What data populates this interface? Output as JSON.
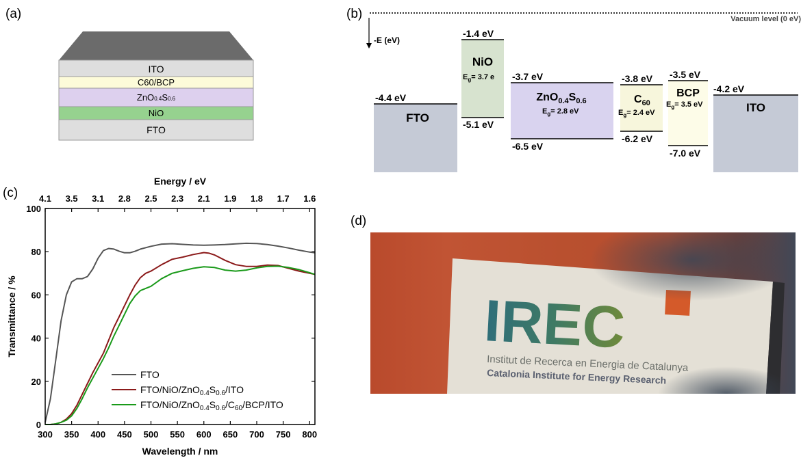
{
  "panel_labels": {
    "a": "(a)",
    "b": "(b)",
    "c": "(c)",
    "d": "(d)"
  },
  "stack": {
    "layers": [
      "ITO",
      "C60/BCP",
      "ZnO",
      "NiO",
      "FTO"
    ],
    "zno_sub_o": "0.4",
    "zno_s": "S",
    "zno_sub_s": "0.6"
  },
  "band_diagram": {
    "vacuum_label": "Vacuum level (0 eV)",
    "axis_label": "-E (eV)",
    "layers": [
      {
        "name": "FTO",
        "level": "-4.4 eV"
      },
      {
        "name": "NiO",
        "top": "-1.4 eV",
        "bottom": "-5.1 eV",
        "eg": "= 3.7 e"
      },
      {
        "name": "ZnO0.4S0.6",
        "top": "-3.7 eV",
        "bottom": "-6.5 eV",
        "eg": "= 2.8 eV"
      },
      {
        "name": "C60",
        "top": "-3.8 eV",
        "bottom": "-6.2 eV",
        "eg": "= 2.4 eV"
      },
      {
        "name": "BCP",
        "top": "-3.5 eV",
        "bottom": "-7.0 eV",
        "eg": "= 3.5 eV"
      },
      {
        "name": "ITO",
        "level": "-4.2 eV"
      }
    ],
    "eg_symbol": "E",
    "eg_sub": "g"
  },
  "chart_data": {
    "type": "line",
    "xlabel": "Wavelength  /  nm",
    "ylabel": "Transmittance  / %",
    "top_axis_label": "Energy  /  eV",
    "xlim": [
      300,
      810
    ],
    "ylim": [
      0,
      100
    ],
    "x_ticks": [
      300,
      350,
      400,
      450,
      500,
      550,
      600,
      650,
      700,
      750,
      800
    ],
    "y_ticks": [
      0,
      20,
      40,
      60,
      80,
      100
    ],
    "top_ticks": [
      "4.1",
      "3.5",
      "3.1",
      "2.8",
      "2.5",
      "2.3",
      "2.1",
      "1.9",
      "1.8",
      "1.7",
      "1.6"
    ],
    "grid": false,
    "legend_position": "bottom-right",
    "series": [
      {
        "name": "FTO",
        "color": "#555555",
        "x": [
          300,
          310,
          320,
          330,
          340,
          350,
          360,
          370,
          380,
          390,
          400,
          410,
          420,
          430,
          440,
          450,
          460,
          470,
          480,
          500,
          520,
          540,
          560,
          580,
          600,
          620,
          640,
          660,
          680,
          700,
          720,
          740,
          760,
          780,
          800,
          810
        ],
        "y": [
          1,
          12,
          30,
          48,
          60,
          66,
          67.5,
          67.5,
          68.5,
          72,
          77,
          80.5,
          81.5,
          81.2,
          80.2,
          79.5,
          79.5,
          80.2,
          81.2,
          82.5,
          83.5,
          83.7,
          83.4,
          83.1,
          83.0,
          83.1,
          83.3,
          83.6,
          83.9,
          83.8,
          83.3,
          82.6,
          81.7,
          80.7,
          79.8,
          79.5
        ]
      },
      {
        "name": "FTO/NiO/ZnO0.4S0.6/ITO",
        "color": "#8b1a1a",
        "x": [
          300,
          310,
          320,
          330,
          340,
          350,
          360,
          370,
          380,
          390,
          400,
          410,
          420,
          430,
          440,
          450,
          460,
          470,
          480,
          490,
          500,
          520,
          540,
          560,
          580,
          600,
          610,
          620,
          640,
          660,
          680,
          700,
          720,
          740,
          760,
          780,
          800,
          810
        ],
        "y": [
          0,
          0,
          0.3,
          1,
          2.5,
          5,
          9,
          14,
          19,
          24,
          28.5,
          33,
          39,
          45,
          50,
          55,
          60,
          64.5,
          68,
          70,
          71,
          74,
          76.5,
          77.5,
          78.7,
          79.6,
          79.3,
          78.5,
          76,
          74,
          73.2,
          73.2,
          73.8,
          73.6,
          72.3,
          71.0,
          70.0,
          69.5
        ]
      },
      {
        "name": "FTO/NiO/ZnO0.4S0.6/C60/BCP/ITO",
        "color": "#1a9a1a",
        "x": [
          300,
          310,
          320,
          330,
          340,
          350,
          360,
          370,
          380,
          390,
          400,
          410,
          420,
          430,
          440,
          450,
          460,
          470,
          480,
          490,
          500,
          520,
          540,
          560,
          580,
          600,
          620,
          640,
          660,
          680,
          700,
          720,
          740,
          760,
          780,
          800,
          810
        ],
        "y": [
          0,
          0,
          0.3,
          1,
          2,
          4,
          7.5,
          12,
          17,
          21.5,
          26,
          30.5,
          35.5,
          41,
          46,
          51,
          56,
          59.5,
          62,
          63,
          64,
          67.5,
          70,
          71.2,
          72.3,
          73.0,
          72.7,
          71.5,
          71.0,
          71.5,
          72.5,
          73.2,
          73.3,
          72.7,
          71.7,
          70.3,
          69.5
        ]
      }
    ]
  },
  "photo": {
    "sign_logo_text": "IREC",
    "sign_line1": "Institut de Recerca en Energia de Catalunya",
    "sign_line2": "Catalonia Institute for Energy Research"
  }
}
